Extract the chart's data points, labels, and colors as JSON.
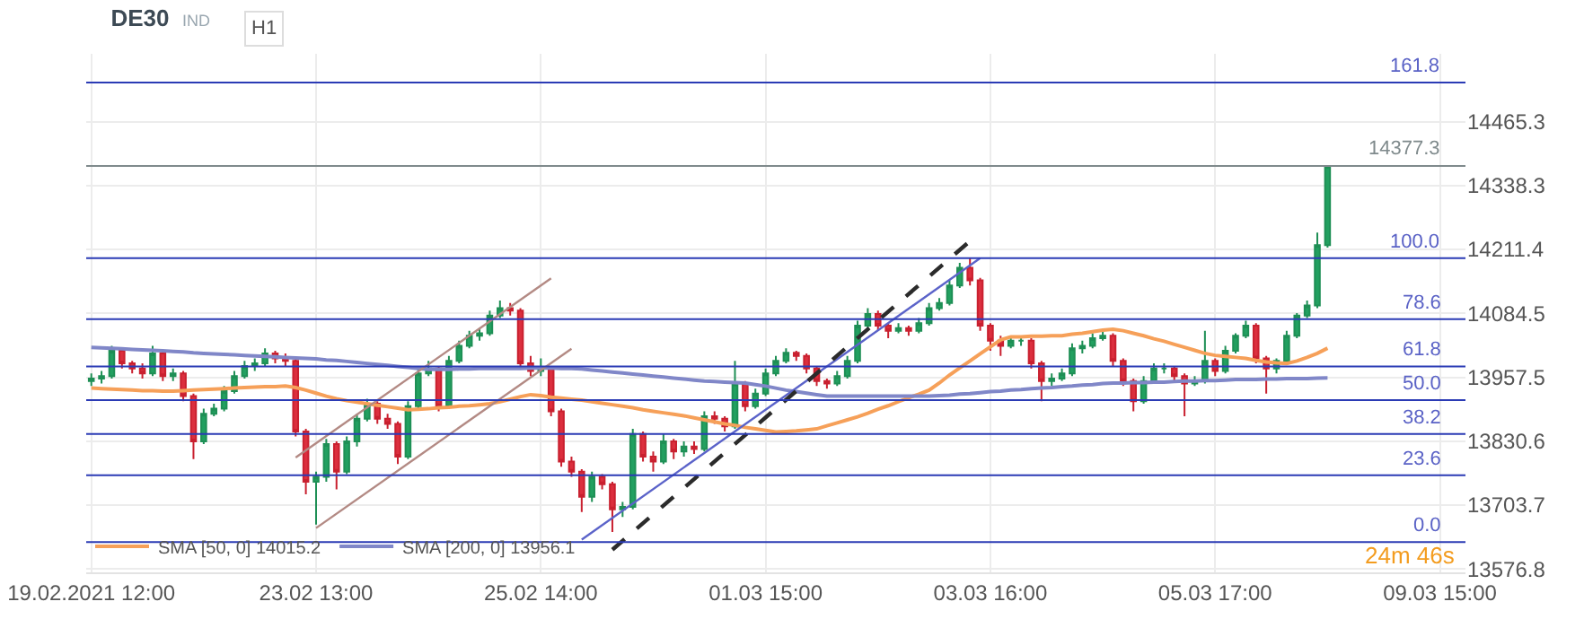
{
  "chart_data": {
    "type": "candlestick",
    "title": "DE30",
    "subtitle": "IND",
    "annotations": [
      "H1",
      "24m 46s",
      {
        "text": "161.8",
        "y": 14543
      },
      {
        "text": "100.0",
        "y": 14194
      },
      {
        "text": "78.6",
        "y": 14073
      },
      {
        "text": "61.8",
        "y": 13979
      },
      {
        "text": "50.0",
        "y": 13912
      },
      {
        "text": "38.2",
        "y": 13845
      },
      {
        "text": "23.6",
        "y": 13763
      },
      {
        "text": "0.0",
        "y": 13630
      }
    ],
    "categories": [
      "19.02.2021 12:00",
      null,
      null,
      null,
      null,
      null,
      null,
      null,
      null,
      null,
      null,
      null,
      null,
      null,
      null,
      null,
      null,
      null,
      null,
      null,
      null,
      null,
      "23.02 13:00",
      null,
      null,
      null,
      null,
      null,
      null,
      null,
      null,
      null,
      null,
      null,
      null,
      null,
      null,
      null,
      null,
      null,
      null,
      null,
      null,
      null,
      "25.02 14:00",
      null,
      null,
      null,
      null,
      null,
      null,
      null,
      null,
      null,
      null,
      null,
      null,
      null,
      null,
      null,
      null,
      null,
      null,
      null,
      null,
      null,
      "01.03 15:00",
      null,
      null,
      null,
      null,
      null,
      null,
      null,
      null,
      null,
      null,
      null,
      null,
      null,
      null,
      null,
      null,
      null,
      null,
      null,
      null,
      null,
      "03.03 16:00",
      null,
      null,
      null,
      null,
      null,
      null,
      null,
      null,
      null,
      null,
      null,
      null,
      null,
      null,
      null,
      null,
      null,
      null,
      null,
      null,
      null,
      "05.03 17:00",
      null,
      null,
      null,
      null,
      null,
      null,
      null,
      null,
      null,
      null,
      null,
      null,
      null,
      null,
      null,
      null,
      null,
      null,
      null,
      null,
      null,
      "09.03 15:00",
      null,
      null
    ],
    "ohlc": [
      [
        13950,
        13965,
        13940,
        13955
      ],
      [
        13955,
        13970,
        13945,
        13960
      ],
      [
        13960,
        14020,
        13955,
        14010
      ],
      [
        14010,
        14015,
        13975,
        13985
      ],
      [
        13985,
        13990,
        13965,
        13975
      ],
      [
        13975,
        13985,
        13955,
        13965
      ],
      [
        13965,
        14020,
        13960,
        14005
      ],
      [
        14005,
        14010,
        13950,
        13960
      ],
      [
        13960,
        13975,
        13950,
        13965
      ],
      [
        13965,
        13970,
        13910,
        13920
      ],
      [
        13920,
        13925,
        13795,
        13830
      ],
      [
        13830,
        13895,
        13825,
        13885
      ],
      [
        13885,
        13905,
        13880,
        13895
      ],
      [
        13895,
        13940,
        13890,
        13930
      ],
      [
        13930,
        13970,
        13925,
        13960
      ],
      [
        13960,
        13990,
        13955,
        13980
      ],
      [
        13980,
        13995,
        13970,
        13985
      ],
      [
        13985,
        14015,
        13980,
        14005
      ],
      [
        14005,
        14010,
        13985,
        13995
      ],
      [
        13995,
        14005,
        13980,
        13990
      ],
      [
        13990,
        13995,
        13840,
        13850
      ],
      [
        13850,
        13855,
        13725,
        13750
      ],
      [
        13750,
        13770,
        13665,
        13760
      ],
      [
        13760,
        13835,
        13750,
        13825
      ],
      [
        13825,
        13830,
        13735,
        13770
      ],
      [
        13770,
        13840,
        13765,
        13830
      ],
      [
        13830,
        13885,
        13820,
        13875
      ],
      [
        13875,
        13915,
        13870,
        13905
      ],
      [
        13905,
        13910,
        13865,
        13875
      ],
      [
        13875,
        13885,
        13855,
        13865
      ],
      [
        13865,
        13870,
        13785,
        13800
      ],
      [
        13800,
        13910,
        13795,
        13900
      ],
      [
        13900,
        13975,
        13895,
        13965
      ],
      [
        13965,
        13990,
        13960,
        13975
      ],
      [
        13975,
        13980,
        13890,
        13900
      ],
      [
        13900,
        14000,
        13895,
        13990
      ],
      [
        13990,
        14030,
        13985,
        14020
      ],
      [
        14020,
        14050,
        14015,
        14040
      ],
      [
        14040,
        14055,
        14030,
        14045
      ],
      [
        14045,
        14090,
        14040,
        14080
      ],
      [
        14080,
        14110,
        14075,
        14095
      ],
      [
        14095,
        14105,
        14080,
        14090
      ],
      [
        14090,
        14095,
        13975,
        13985
      ],
      [
        13985,
        14000,
        13960,
        13970
      ],
      [
        13970,
        13995,
        13960,
        13975
      ],
      [
        13975,
        13980,
        13880,
        13890
      ],
      [
        13890,
        13895,
        13780,
        13790
      ],
      [
        13790,
        13800,
        13760,
        13770
      ],
      [
        13770,
        13775,
        13690,
        13720
      ],
      [
        13720,
        13770,
        13710,
        13760
      ],
      [
        13760,
        13765,
        13735,
        13745
      ],
      [
        13745,
        13750,
        13650,
        13695
      ],
      [
        13695,
        13710,
        13680,
        13700
      ],
      [
        13700,
        13855,
        13695,
        13845
      ],
      [
        13845,
        13850,
        13790,
        13800
      ],
      [
        13800,
        13810,
        13770,
        13790
      ],
      [
        13790,
        13845,
        13785,
        13830
      ],
      [
        13830,
        13835,
        13795,
        13810
      ],
      [
        13810,
        13830,
        13800,
        13820
      ],
      [
        13820,
        13830,
        13805,
        13815
      ],
      [
        13815,
        13890,
        13810,
        13880
      ],
      [
        13880,
        13890,
        13865,
        13875
      ],
      [
        13875,
        13880,
        13850,
        13860
      ],
      [
        13860,
        13990,
        13855,
        13945
      ],
      [
        13945,
        13950,
        13890,
        13900
      ],
      [
        13900,
        13935,
        13895,
        13925
      ],
      [
        13925,
        13975,
        13920,
        13965
      ],
      [
        13965,
        14000,
        13960,
        13990
      ],
      [
        13990,
        14015,
        13985,
        14006
      ],
      [
        14006,
        14010,
        13990,
        14000
      ],
      [
        14000,
        14005,
        13965,
        13975
      ],
      [
        13975,
        13980,
        13940,
        13950
      ],
      [
        13950,
        13955,
        13935,
        13945
      ],
      [
        13945,
        13970,
        13940,
        13960
      ],
      [
        13960,
        14000,
        13955,
        13990
      ],
      [
        13990,
        14070,
        13985,
        14060
      ],
      [
        14060,
        14095,
        14055,
        14083
      ],
      [
        14083,
        14090,
        14050,
        14060
      ],
      [
        14060,
        14065,
        14035,
        14050
      ],
      [
        14050,
        14065,
        14045,
        14055
      ],
      [
        14055,
        14060,
        14040,
        14050
      ],
      [
        14050,
        14075,
        14045,
        14065
      ],
      [
        14065,
        14105,
        14060,
        14095
      ],
      [
        14095,
        14115,
        14090,
        14105
      ],
      [
        14105,
        14150,
        14100,
        14140
      ],
      [
        14140,
        14185,
        14135,
        14175
      ],
      [
        14175,
        14195,
        14140,
        14150
      ],
      [
        14150,
        14155,
        14050,
        14060
      ],
      [
        14060,
        14065,
        14010,
        14030
      ],
      [
        14030,
        14040,
        14000,
        14020
      ],
      [
        14020,
        14040,
        14015,
        14030
      ],
      [
        14030,
        14040,
        14020,
        14030
      ],
      [
        14030,
        14035,
        13975,
        13985
      ],
      [
        13985,
        13990,
        13910,
        13950
      ],
      [
        13950,
        13965,
        13940,
        13955
      ],
      [
        13955,
        13975,
        13950,
        13965
      ],
      [
        13965,
        14025,
        13960,
        14015
      ],
      [
        14015,
        14030,
        14005,
        14020
      ],
      [
        14020,
        14045,
        14015,
        14035
      ],
      [
        14035,
        14050,
        14030,
        14040
      ],
      [
        14040,
        14045,
        13980,
        13990
      ],
      [
        13990,
        13995,
        13940,
        13950
      ],
      [
        13950,
        13955,
        13890,
        13910
      ],
      [
        13910,
        13960,
        13905,
        13950
      ],
      [
        13950,
        13985,
        13945,
        13975
      ],
      [
        13975,
        13985,
        13965,
        13975
      ],
      [
        13975,
        13980,
        13950,
        13960
      ],
      [
        13960,
        13965,
        13880,
        13945
      ],
      [
        13945,
        13960,
        13940,
        13950
      ],
      [
        13950,
        14050,
        13945,
        13990
      ],
      [
        13990,
        13995,
        13960,
        13970
      ],
      [
        13970,
        14020,
        13965,
        14010
      ],
      [
        14010,
        14045,
        14005,
        14040
      ],
      [
        14040,
        14070,
        14035,
        14060
      ],
      [
        14060,
        14065,
        13985,
        13995
      ],
      [
        13995,
        14000,
        13925,
        13975
      ],
      [
        13975,
        13995,
        13965,
        13990
      ],
      [
        13990,
        14050,
        13985,
        14040
      ],
      [
        14040,
        14085,
        14035,
        14080
      ],
      [
        14080,
        14110,
        14075,
        14100
      ],
      [
        14100,
        14245,
        14095,
        14220
      ],
      [
        14220,
        14377.3,
        14215,
        14377.3
      ],
      null,
      null,
      null,
      null,
      null,
      null,
      null,
      null,
      null,
      null,
      null,
      null,
      null
    ],
    "series": [
      {
        "type": "line",
        "name": "SMA [50, 0] 14015.2",
        "color": "#f6a059",
        "values": [
          13936,
          13935,
          13934,
          13933,
          13932,
          13931,
          13931,
          13930,
          13930,
          13931,
          13932,
          13933,
          13934,
          13935,
          13936,
          13937,
          13938,
          13939,
          13939,
          13940,
          13937,
          13932,
          13926,
          13920,
          13915,
          13911,
          13908,
          13905,
          13902,
          13899,
          13896,
          13893,
          13894,
          13895,
          13897,
          13898,
          13900,
          13901,
          13903,
          13905,
          13909,
          13914,
          13919,
          13923,
          13921,
          13918,
          13916,
          13914,
          13912,
          13909,
          13906,
          13903,
          13900,
          13897,
          13893,
          13890,
          13887,
          13884,
          13881,
          13877,
          13873,
          13869,
          13865,
          13862,
          13858,
          13855,
          13852,
          13849,
          13850,
          13851,
          13853,
          13855,
          13861,
          13867,
          13873,
          13879,
          13886,
          13894,
          13901,
          13909,
          13917,
          13924,
          13932,
          13946,
          13962,
          13976,
          13990,
          14004,
          14018,
          14032,
          14038,
          14038,
          14039,
          14039,
          14040,
          14040,
          14043,
          14045,
          14048,
          14051,
          14053,
          14050,
          14045,
          14040,
          14034,
          14029,
          14023,
          14017,
          14011,
          14005,
          14001,
          13999,
          13997,
          13995,
          13991,
          13988,
          13986,
          13985,
          13990,
          13997,
          14005,
          14015.2,
          null,
          null,
          null,
          null,
          null,
          null,
          null,
          null,
          null,
          null,
          null,
          null,
          null
        ]
      },
      {
        "type": "line",
        "name": "SMA [200, 0] 13956.1",
        "color": "#8087c8",
        "values": [
          14017,
          14016,
          14015,
          14014,
          14013,
          14012,
          14011,
          14010,
          14009,
          14008,
          14006,
          14005,
          14004,
          14003,
          14002,
          14001,
          14000,
          13999,
          13998,
          13997,
          13996,
          13995,
          13994,
          13992,
          13991,
          13989,
          13987,
          13985,
          13983,
          13981,
          13979,
          13977,
          13975,
          13973,
          13973,
          13973,
          13974,
          13974,
          13975,
          13975,
          13975,
          13975,
          13975,
          13976,
          13976,
          13976,
          13975,
          13975,
          13974,
          13972,
          13970,
          13968,
          13966,
          13964,
          13962,
          13960,
          13958,
          13956,
          13954,
          13952,
          13950,
          13949,
          13948,
          13947,
          13946,
          13943,
          13940,
          13936,
          13932,
          13929,
          13926,
          13923,
          13920,
          13920,
          13920,
          13920,
          13920,
          13920,
          13920,
          13920,
          13920,
          13920,
          13920,
          13921,
          13922,
          13924,
          13925,
          13927,
          13929,
          13930,
          13932,
          13933,
          13935,
          13936,
          13937,
          13939,
          13940,
          13942,
          13943,
          13945,
          13946,
          13946,
          13947,
          13947,
          13948,
          13948,
          13949,
          13950,
          13950,
          13951,
          13951,
          13952,
          13953,
          13953,
          13953,
          13954,
          13954,
          13955,
          13955,
          13955,
          13956,
          13956.1,
          null,
          null,
          null,
          null,
          null,
          null,
          null,
          null,
          null,
          null,
          null,
          null,
          null
        ]
      },
      {
        "type": "line",
        "color": "#b38a84",
        "values": [
          null,
          null,
          null,
          null,
          null,
          null,
          null,
          null,
          null,
          null,
          null,
          null,
          null,
          null,
          null,
          null,
          null,
          null,
          null,
          null,
          13798,
          null,
          null,
          null,
          null,
          null,
          null,
          null,
          null,
          null,
          null,
          null,
          null,
          null,
          null,
          null,
          null,
          null,
          null,
          null,
          null,
          null,
          null,
          null,
          null,
          14154,
          null,
          null,
          null,
          null,
          null,
          null,
          null,
          null,
          null,
          null,
          null,
          null,
          null,
          null,
          null,
          null,
          null,
          null,
          null,
          null,
          null,
          null,
          null,
          null,
          null,
          null,
          null,
          null,
          null,
          null,
          null,
          null,
          null,
          null,
          null,
          null,
          null,
          null,
          null,
          null,
          null,
          null,
          null,
          null,
          null,
          null,
          null,
          null,
          null,
          null,
          null,
          null,
          null,
          null,
          null,
          null,
          null,
          null,
          null,
          null,
          null,
          null,
          null,
          null,
          null,
          null,
          null,
          null,
          null,
          null,
          null,
          null,
          null,
          null,
          null,
          null,
          null,
          null,
          null,
          null,
          null,
          null,
          null,
          null,
          null,
          null,
          null,
          null,
          null
        ]
      },
      {
        "type": "line",
        "color": "#b38a84",
        "values": [
          null,
          null,
          null,
          null,
          null,
          null,
          null,
          null,
          null,
          null,
          null,
          null,
          null,
          null,
          null,
          null,
          null,
          null,
          null,
          null,
          null,
          null,
          13658,
          null,
          null,
          null,
          null,
          null,
          null,
          null,
          null,
          null,
          null,
          null,
          null,
          null,
          null,
          null,
          null,
          null,
          null,
          null,
          null,
          null,
          null,
          null,
          null,
          14014,
          null,
          null,
          null,
          null,
          null,
          null,
          null,
          null,
          null,
          null,
          null,
          null,
          null,
          null,
          null,
          null,
          null,
          null,
          null,
          null,
          null,
          null,
          null,
          null,
          null,
          null,
          null,
          null,
          null,
          null,
          null,
          null,
          null,
          null,
          null,
          null,
          null,
          null,
          null,
          null,
          null,
          null,
          null,
          null,
          null,
          null,
          null,
          null,
          null,
          null,
          null,
          null,
          null,
          null,
          null,
          null,
          null,
          null,
          null,
          null,
          null,
          null,
          null,
          null,
          null,
          null,
          null,
          null,
          null,
          null,
          null,
          null,
          null,
          null,
          null,
          null,
          null,
          null,
          null,
          null,
          null,
          null,
          null,
          null,
          null,
          null,
          null
        ]
      },
      {
        "type": "line",
        "color": "#5b63c9",
        "values": [
          null,
          null,
          null,
          null,
          null,
          null,
          null,
          null,
          null,
          null,
          null,
          null,
          null,
          null,
          null,
          null,
          null,
          null,
          null,
          null,
          null,
          null,
          null,
          null,
          null,
          null,
          null,
          null,
          null,
          null,
          null,
          null,
          null,
          null,
          null,
          null,
          null,
          null,
          null,
          null,
          null,
          null,
          null,
          null,
          null,
          null,
          null,
          null,
          13635,
          null,
          null,
          null,
          null,
          null,
          null,
          null,
          null,
          null,
          null,
          null,
          null,
          null,
          null,
          null,
          null,
          null,
          null,
          null,
          null,
          null,
          null,
          null,
          null,
          null,
          null,
          null,
          null,
          null,
          null,
          null,
          null,
          null,
          null,
          null,
          null,
          null,
          null,
          14194,
          null,
          null,
          null,
          null,
          null,
          null,
          null,
          null,
          null,
          null,
          null,
          null,
          null,
          null,
          null,
          null,
          null,
          null,
          null,
          null,
          null,
          null,
          null,
          null,
          null,
          null,
          null,
          null,
          null,
          null,
          null,
          null,
          null,
          null,
          null,
          null,
          null,
          null,
          null,
          null,
          null,
          null,
          null,
          null,
          null,
          null,
          null
        ]
      },
      {
        "type": "line",
        "color": "#2b2b2b",
        "line_style": "dashed",
        "values": [
          null,
          null,
          null,
          null,
          null,
          null,
          null,
          null,
          null,
          null,
          null,
          null,
          null,
          null,
          null,
          null,
          null,
          null,
          null,
          null,
          null,
          null,
          null,
          null,
          null,
          null,
          null,
          null,
          null,
          null,
          null,
          null,
          null,
          null,
          null,
          null,
          null,
          null,
          null,
          null,
          null,
          null,
          null,
          null,
          null,
          null,
          null,
          null,
          null,
          null,
          null,
          13615,
          null,
          null,
          null,
          null,
          null,
          null,
          null,
          null,
          null,
          null,
          null,
          null,
          null,
          null,
          null,
          null,
          null,
          null,
          null,
          null,
          null,
          null,
          null,
          null,
          null,
          null,
          null,
          null,
          null,
          null,
          null,
          null,
          null,
          null,
          14228,
          null,
          null,
          null,
          null,
          null,
          null,
          null,
          null,
          null,
          null,
          null,
          null,
          null,
          null,
          null,
          null,
          null,
          null,
          null,
          null,
          null,
          null,
          null,
          null,
          null,
          null,
          null,
          null,
          null,
          null,
          null,
          null,
          null,
          null,
          null,
          null,
          null,
          null,
          null,
          null,
          null,
          null,
          null,
          null,
          null,
          null,
          null,
          null
        ]
      }
    ],
    "ylim": [
      13570,
      14600
    ],
    "yticks": [
      13576.8,
      13703.7,
      13830.6,
      13957.5,
      14084.5,
      14211.4,
      14338.3,
      14465.3
    ],
    "ref_lines": [
      {
        "axis": "y",
        "value": 14377.3,
        "label": "14377.3",
        "color": "#7f8a8c"
      },
      {
        "axis": "y",
        "value": 14543,
        "color": "#2b3bb5"
      },
      {
        "axis": "y",
        "value": 14194,
        "color": "#2b3bb5"
      },
      {
        "axis": "y",
        "value": 14073,
        "color": "#2b3bb5"
      },
      {
        "axis": "y",
        "value": 13979,
        "color": "#2b3bb5"
      },
      {
        "axis": "y",
        "value": 13912,
        "color": "#2b3bb5"
      },
      {
        "axis": "y",
        "value": 13845,
        "color": "#2b3bb5"
      },
      {
        "axis": "y",
        "value": 13763,
        "color": "#2b3bb5"
      },
      {
        "axis": "y",
        "value": 13630,
        "color": "#2b3bb5"
      }
    ],
    "grid": true,
    "legend": "bottom left"
  }
}
